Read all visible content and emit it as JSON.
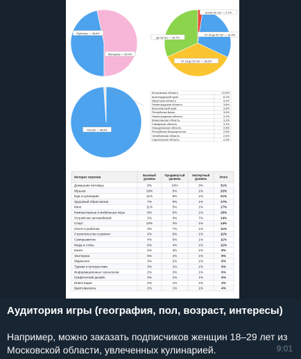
{
  "post": {
    "title": "Аудитория игры (география, пол, возраст, интересы)",
    "body": "Например, можно заказать подписчиков женщин 18–29 лет из Московской области, увлеченных кулинарией.",
    "time": "9:01"
  },
  "colors": {
    "blue": "#4da3ee",
    "pink": "#f7b6d8",
    "green": "#8cd44c",
    "yellow": "#fbc531",
    "red": "#e74c3c"
  },
  "chart_data": [
    {
      "type": "pie",
      "labels": [
        "Мужчины — 46,6%",
        "Женщины — 53,4%"
      ],
      "values": [
        46.6,
        53.4
      ]
    },
    {
      "type": "pie",
      "labels": [
        "Более 50 лет — 2,7%",
        "От 30 до 50 лет — 31,2%",
        "От 18 до 29 лет — 38,3%",
        "До 18 лет — 33,7%"
      ],
      "values": [
        2.7,
        31.2,
        38.3,
        33.7
      ]
    },
    {
      "type": "pie",
      "labels": [
        "Россия — 98,9%",
        "Другие — 1,1%"
      ],
      "values": [
        98.9,
        1.1
      ]
    },
    {
      "type": "table",
      "rows": [
        [
          "Московская область",
          "10,5%"
        ],
        [
          "Краснодарский край",
          "6,2%"
        ],
        [
          "Иркутская область",
          "4,2%"
        ],
        [
          "Ленинградская область",
          "3,8%"
        ],
        [
          "Красноярский край",
          "3,8%"
        ],
        [
          "Республика Крым",
          "3,6%"
        ],
        [
          "Нижегородская область",
          "3,3%"
        ],
        [
          "Кемеровская область",
          "3,3%"
        ],
        [
          "Самарская область",
          "3,1%"
        ],
        [
          "Свердловская область",
          "2,8%"
        ],
        [
          "Республика Башкортостан",
          "2,8%"
        ],
        [
          "Челябинская область",
          "2,6%"
        ],
        [
          "Саратовская область",
          "2,3%"
        ]
      ]
    },
    {
      "type": "table",
      "headers": [
        "Интерес игроков",
        "Базовый уровень",
        "Продвинутый уровень",
        "Экспертный уровень",
        "Итого"
      ],
      "rows": [
        [
          "Домашние питомцы",
          "9%",
          "19%",
          "3%",
          "31%"
        ],
        [
          "Музыка",
          "16%",
          "5%",
          "1%",
          "22%"
        ],
        [
          "Еда и кулинария",
          "11%",
          "9%",
          "1%",
          "21%"
        ],
        [
          "Здоровый образ жизни",
          "7%",
          "9%",
          "1%",
          "17%"
        ],
        [
          "Кино",
          "11%",
          "5%",
          "1%",
          "17%"
        ],
        [
          "Компьютерные и мобильные игры",
          "9%",
          "5%",
          "1%",
          "15%"
        ],
        [
          "Устройство автомобилей",
          "3%",
          "4%",
          "7%",
          "14%"
        ],
        [
          "Спорт",
          "10%",
          "3%",
          "1%",
          "14%"
        ],
        [
          "Охота и рыбалка",
          "3%",
          "7%",
          "1%",
          "11%"
        ],
        [
          "Строительство и ремонт",
          "4%",
          "6%",
          "1%",
          "11%"
        ],
        [
          "Саморазвитие",
          "4%",
          "6%",
          "1%",
          "11%"
        ],
        [
          "Мода и стиль",
          "6%",
          "4%",
          "1%",
          "11%"
        ],
        [
          "Книги",
          "4%",
          "3%",
          "1%",
          "8%"
        ],
        [
          "Эзотерика",
          "5%",
          "2%",
          "1%",
          "8%"
        ],
        [
          "Маркетинг",
          "3%",
          "2%",
          "1%",
          "6%"
        ],
        [
          "Туризм и путешествия",
          "3%",
          "2%",
          "1%",
          "6%"
        ],
        [
          "Информационные технологии",
          "2%",
          "3%",
          "1%",
          "6%"
        ],
        [
          "Графический дизайн",
          "3%",
          "1%",
          "1%",
          "5%"
        ],
        [
          "Инвестиции",
          "2%",
          "1%",
          "1%",
          "4%"
        ],
        [
          "Криптовалюты",
          "2%",
          "1%",
          "1%",
          "4%"
        ]
      ]
    }
  ]
}
